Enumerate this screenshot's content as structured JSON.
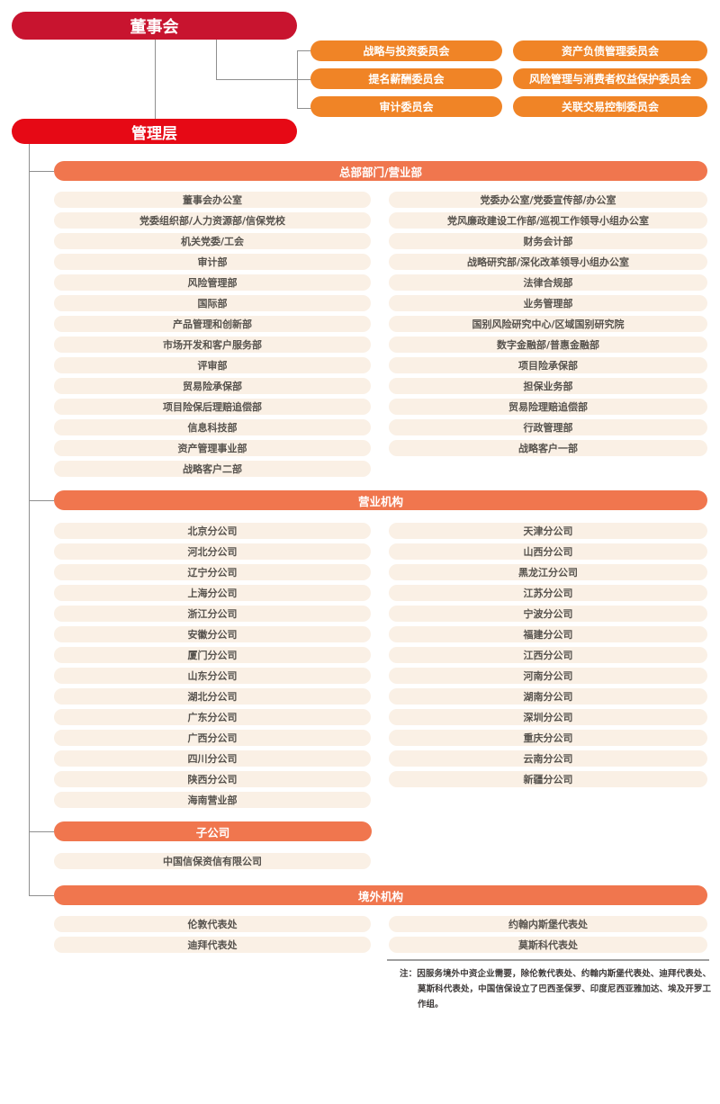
{
  "org": {
    "board_label": "董事会",
    "management_label": "管理层",
    "committees": [
      "战略与投资委员会",
      "资产负债管理委员会",
      "提名薪酬委员会",
      "风险管理与消费者权益保护委员会",
      "审计委员会",
      "关联交易控制委员会"
    ],
    "sections": {
      "hq": {
        "title": "总部部门/营业部",
        "left": [
          "董事会办公室",
          "党委组织部/人力资源部/信保党校",
          "机关党委/工会",
          "审计部",
          "风险管理部",
          "国际部",
          "产品管理和创新部",
          "市场开发和客户服务部",
          "评审部",
          "贸易险承保部",
          "项目险保后理赔追偿部",
          "信息科技部",
          "资产管理事业部",
          "战略客户二部"
        ],
        "right": [
          "党委办公室/党委宣传部/办公室",
          "党风廉政建设工作部/巡视工作领导小组办公室",
          "财务会计部",
          "战略研究部/深化改革领导小组办公室",
          "法律合规部",
          "业务管理部",
          "国别风险研究中心/区域国别研究院",
          "数字金融部/普惠金融部",
          "项目险承保部",
          "担保业务部",
          "贸易险理赔追偿部",
          "行政管理部",
          "战略客户一部"
        ]
      },
      "branches": {
        "title": "营业机构",
        "left": [
          "北京分公司",
          "河北分公司",
          "辽宁分公司",
          "上海分公司",
          "浙江分公司",
          "安徽分公司",
          "厦门分公司",
          "山东分公司",
          "湖北分公司",
          "广东分公司",
          "广西分公司",
          "四川分公司",
          "陕西分公司",
          "海南营业部"
        ],
        "right": [
          "天津分公司",
          "山西分公司",
          "黑龙江分公司",
          "江苏分公司",
          "宁波分公司",
          "福建分公司",
          "江西分公司",
          "河南分公司",
          "湖南分公司",
          "深圳分公司",
          "重庆分公司",
          "云南分公司",
          "新疆分公司"
        ]
      },
      "subsidiaries": {
        "title": "子公司",
        "items": [
          "中国信保资信有限公司"
        ]
      },
      "overseas": {
        "title": "境外机构",
        "left": [
          "伦敦代表处",
          "迪拜代表处"
        ],
        "right": [
          "约翰内斯堡代表处",
          "莫斯科代表处"
        ]
      }
    },
    "note": "注：因服务境外中资企业需要，除伦敦代表处、约翰内斯堡代表处、迪拜代表处、莫斯科代表处，中国信保设立了巴西圣保罗、印度尼西亚雅加达、埃及开罗工作组。"
  },
  "colors": {
    "boardRed": "#C8142F",
    "mgmtRed": "#E60915",
    "committeeOrange": "#F08426",
    "headerCoral": "#F0764E",
    "itemBg": "#FAF0E5",
    "itemText": "#57534E",
    "lineGray": "#8F8F8F",
    "noteText": "#3E3A39",
    "dividerGray": "#9E9E9E"
  }
}
